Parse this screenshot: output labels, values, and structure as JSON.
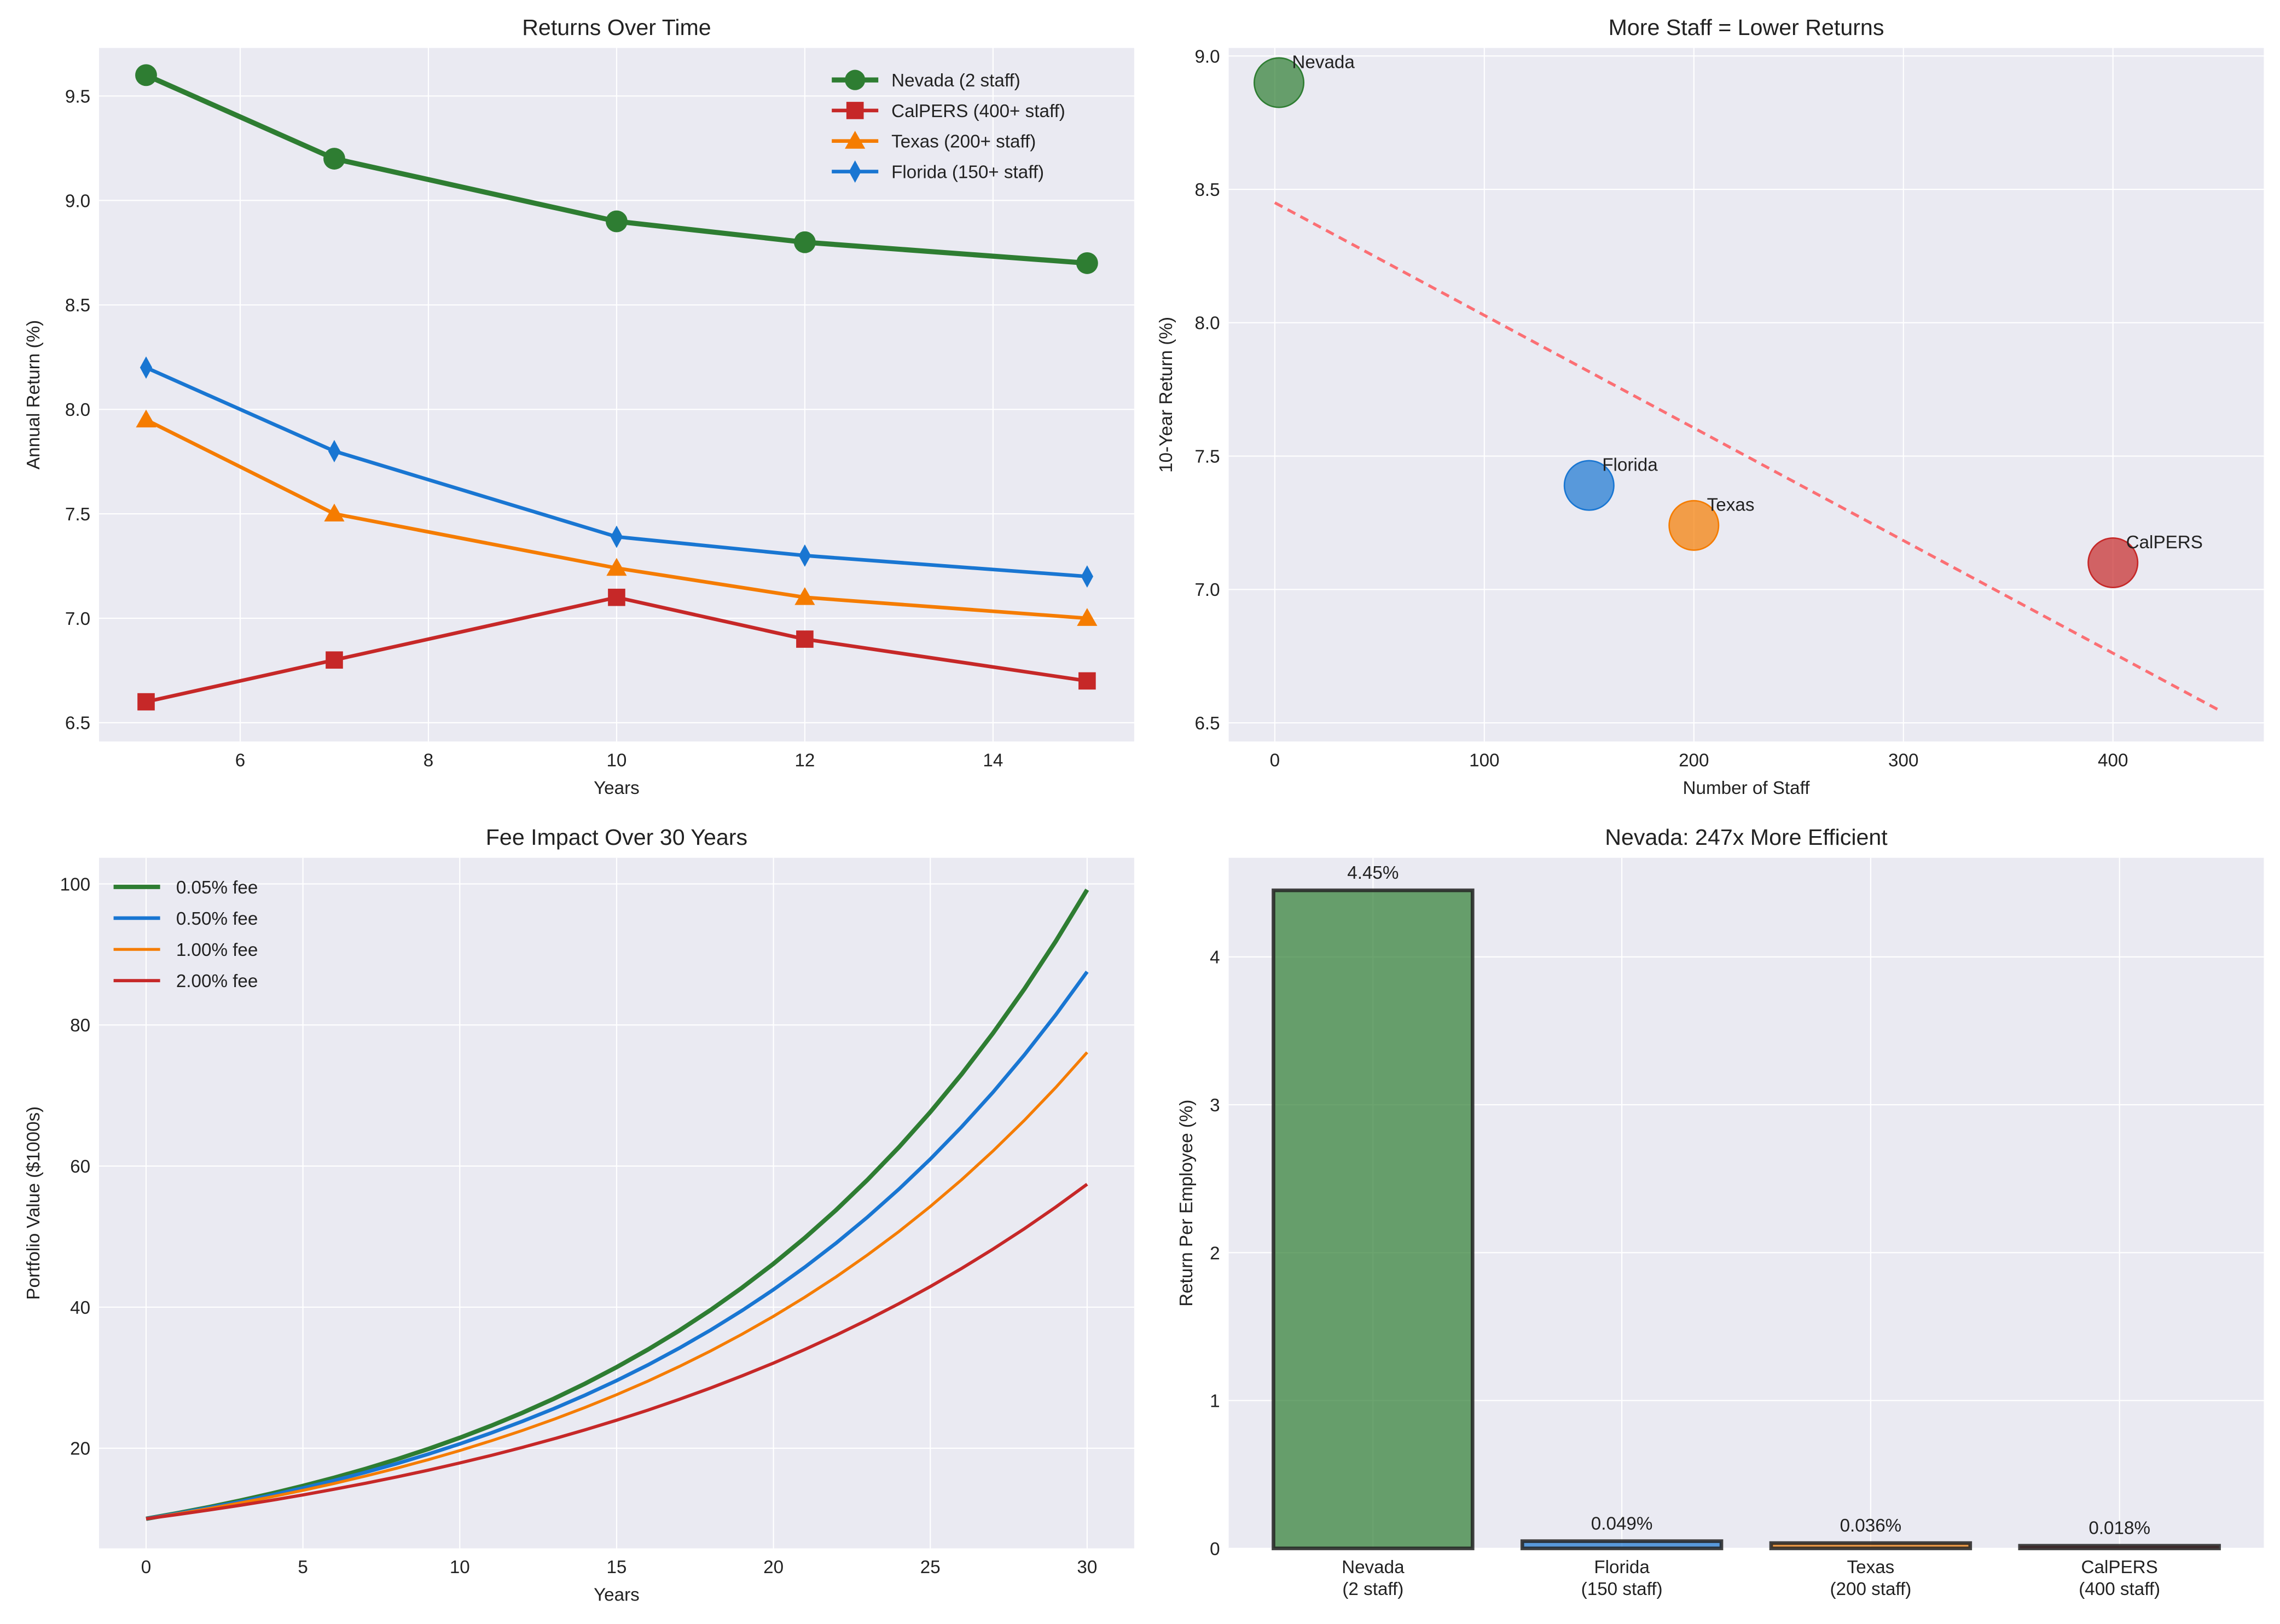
{
  "chart_data": [
    {
      "type": "line",
      "title": "Returns Over Time",
      "xlabel": "Years",
      "ylabel": "Annual Return (%)",
      "xlim": [
        4.5,
        15.5
      ],
      "ylim": [
        6.41,
        9.73
      ],
      "xticks": [
        6,
        8,
        10,
        12,
        14
      ],
      "yticks": [
        6.5,
        7.0,
        7.5,
        8.0,
        8.5,
        9.0,
        9.5
      ],
      "grid": true,
      "legend": "top-right",
      "x": [
        5,
        7,
        10,
        12,
        15
      ],
      "series": [
        {
          "name": "Nevada (2 staff)",
          "values": [
            9.6,
            9.2,
            8.9,
            8.8,
            8.7
          ],
          "color": "#2e7d32",
          "marker": "circle"
        },
        {
          "name": "CalPERS (400+ staff)",
          "values": [
            6.6,
            6.8,
            7.1,
            6.9,
            6.7
          ],
          "color": "#c62828",
          "marker": "square"
        },
        {
          "name": "Texas (200+ staff)",
          "values": [
            7.95,
            7.5,
            7.24,
            7.1,
            7.0
          ],
          "color": "#f57c00",
          "marker": "triangle"
        },
        {
          "name": "Florida (150+ staff)",
          "values": [
            8.2,
            7.8,
            7.39,
            7.3,
            7.2
          ],
          "color": "#1976d2",
          "marker": "diamond"
        }
      ]
    },
    {
      "type": "scatter",
      "title": "More Staff = Lower Returns",
      "xlabel": "Number of Staff",
      "ylabel": "10-Year Return (%)",
      "xlim": [
        -22,
        472
      ],
      "ylim": [
        6.43,
        9.03
      ],
      "xticks": [
        0,
        100,
        200,
        300,
        400
      ],
      "yticks": [
        6.5,
        7.0,
        7.5,
        8.0,
        8.5,
        9.0
      ],
      "grid": true,
      "points": [
        {
          "label": "Nevada",
          "x": 2,
          "y": 8.9,
          "color": "#2e7d32"
        },
        {
          "label": "Florida",
          "x": 150,
          "y": 7.39,
          "color": "#1976d2"
        },
        {
          "label": "Texas",
          "x": 200,
          "y": 7.24,
          "color": "#f57c00"
        },
        {
          "label": "CalPERS",
          "x": 400,
          "y": 7.1,
          "color": "#c62828"
        }
      ],
      "trendline": {
        "x": [
          0,
          450
        ],
        "y": [
          8.45,
          6.55
        ],
        "color": "#ff5a5f",
        "style": "dashed"
      }
    },
    {
      "type": "line",
      "title": "Fee Impact Over 30 Years",
      "xlabel": "Years",
      "ylabel": "Portfolio Value ($1000s)",
      "xlim": [
        -1.5,
        31.5
      ],
      "ylim": [
        5.8,
        103.7
      ],
      "xticks": [
        0,
        5,
        10,
        15,
        20,
        25,
        30
      ],
      "yticks": [
        20,
        40,
        60,
        80,
        100
      ],
      "grid": true,
      "legend": "top-left",
      "x": [
        0,
        1,
        2,
        3,
        4,
        5,
        6,
        7,
        8,
        9,
        10,
        11,
        12,
        13,
        14,
        15,
        16,
        17,
        18,
        19,
        20,
        21,
        22,
        23,
        24,
        25,
        26,
        27,
        28,
        29,
        30
      ],
      "series": [
        {
          "name": "0.05% fee",
          "color": "#2e7d32",
          "width": 3,
          "values": [
            10.0,
            10.8,
            11.65,
            12.58,
            13.58,
            14.66,
            15.82,
            17.08,
            18.44,
            19.9,
            21.48,
            23.19,
            25.03,
            27.02,
            29.17,
            31.49,
            33.99,
            36.69,
            39.61,
            42.76,
            46.15,
            49.82,
            53.78,
            58.06,
            62.67,
            67.65,
            73.03,
            78.84,
            85.1,
            91.87,
            99.17
          ]
        },
        {
          "name": "0.50% fee",
          "color": "#1976d2",
          "width": 2.5,
          "values": [
            10.0,
            10.75,
            11.56,
            12.42,
            13.35,
            14.36,
            15.43,
            16.59,
            17.83,
            19.17,
            20.61,
            22.16,
            23.82,
            25.61,
            27.53,
            29.59,
            31.81,
            34.2,
            36.76,
            39.52,
            42.48,
            45.67,
            49.09,
            52.77,
            56.73,
            60.98,
            65.56,
            70.47,
            75.76,
            81.44,
            87.55
          ]
        },
        {
          "name": "1.00% fee",
          "color": "#f57c00",
          "width": 2,
          "values": [
            10.0,
            10.7,
            11.45,
            12.25,
            13.11,
            14.03,
            15.01,
            16.06,
            17.18,
            18.38,
            19.67,
            21.05,
            22.52,
            24.1,
            25.79,
            27.59,
            29.52,
            31.59,
            33.8,
            36.17,
            38.7,
            41.41,
            44.3,
            47.41,
            50.72,
            54.27,
            58.07,
            62.14,
            66.49,
            71.14,
            76.12
          ]
        },
        {
          "name": "2.00% fee",
          "color": "#c62828",
          "width": 2.2,
          "values": [
            10.0,
            10.6,
            11.24,
            11.91,
            12.62,
            13.38,
            14.19,
            15.04,
            15.94,
            16.89,
            17.91,
            18.98,
            20.12,
            21.33,
            22.61,
            23.97,
            25.4,
            26.93,
            28.54,
            30.26,
            32.07,
            34.0,
            36.04,
            38.2,
            40.49,
            42.92,
            45.49,
            48.23,
            51.12,
            54.19,
            57.43
          ]
        }
      ]
    },
    {
      "type": "bar",
      "title": "Nevada: 247x More Efficient",
      "xlabel": "",
      "ylabel": "Return Per Employee (%)",
      "ylim": [
        0,
        4.67
      ],
      "yticks": [
        0,
        1,
        2,
        3,
        4
      ],
      "grid": true,
      "categories": [
        "Nevada\n(2 staff)",
        "Florida\n(150 staff)",
        "Texas\n(200 staff)",
        "CalPERS\n(400 staff)"
      ],
      "values": [
        4.45,
        0.049,
        0.036,
        0.018
      ],
      "data_labels": [
        "4.45%",
        "0.049%",
        "0.036%",
        "0.018%"
      ],
      "colors": [
        "#2e7d32",
        "#1976d2",
        "#f57c00",
        "#c62828"
      ]
    }
  ]
}
